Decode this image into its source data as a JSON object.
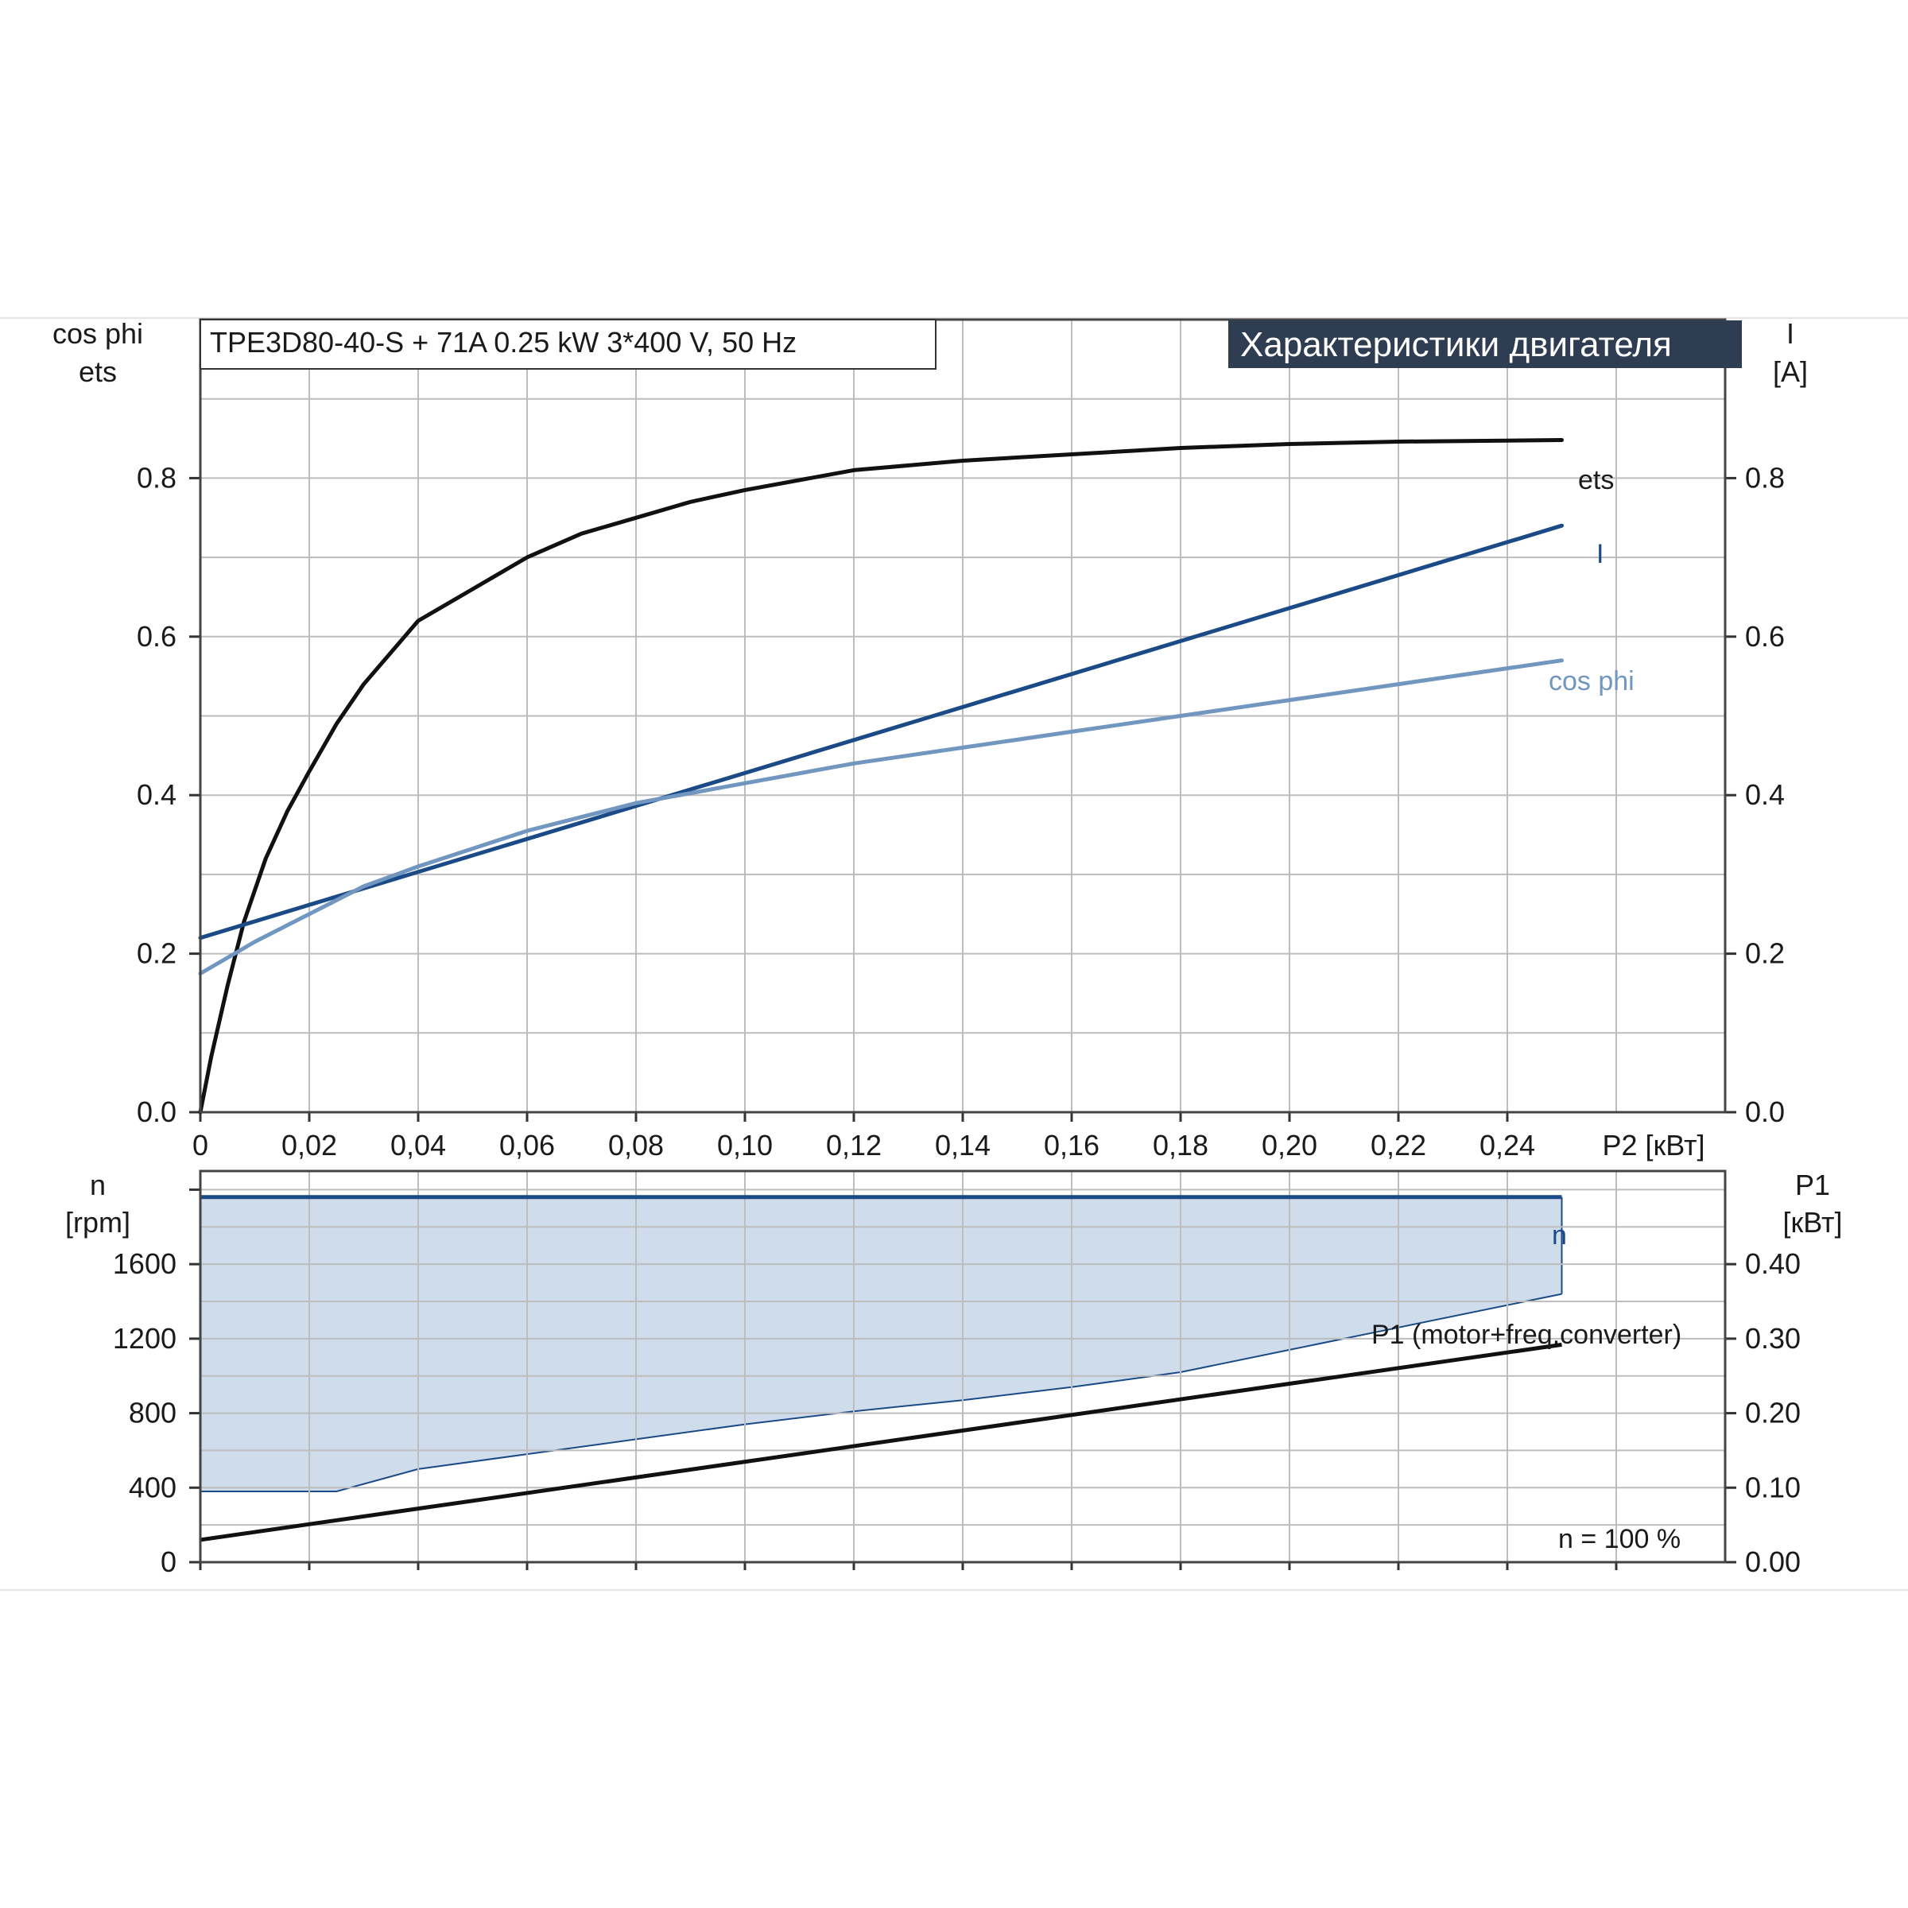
{
  "model_info": "TPE3D80-40-S + 71A   0.25 kW   3*400 V, 50 Hz",
  "banner": "Характеристики двигателя",
  "colors": {
    "ets": "#111111",
    "I": "#1b4b86",
    "cos_phi": "#7196c0",
    "n": "#1b4b86",
    "P1": "#111111",
    "fill": "#cfdceb",
    "grid": "#bdbdbd",
    "banner_bg": "#2e3d52"
  },
  "chart_data": [
    {
      "type": "line",
      "xlabel": "P2 [кВт]",
      "x_tick_labels": [
        "0",
        "0,02",
        "0,04",
        "0,06",
        "0,08",
        "0,10",
        "0,12",
        "0,14",
        "0,16",
        "0,18",
        "0,20",
        "0,22",
        "0,24"
      ],
      "xlim": [
        0,
        0.28
      ],
      "y_left_label": [
        "cos phi",
        "ets"
      ],
      "y_right_label": [
        "I",
        "[A]"
      ],
      "ylim": [
        0,
        1.0
      ],
      "y_tick_labels": [
        "0.0",
        "0.2",
        "0.4",
        "0.6",
        "0.8"
      ],
      "y_right_tick_labels": [
        "0.0",
        "0.2",
        "0.4",
        "0.6",
        "0.8"
      ],
      "grid": true,
      "series": [
        {
          "name": "ets",
          "x": [
            0,
            0.002,
            0.005,
            0.008,
            0.012,
            0.016,
            0.02,
            0.025,
            0.03,
            0.04,
            0.05,
            0.06,
            0.07,
            0.08,
            0.09,
            0.1,
            0.12,
            0.14,
            0.16,
            0.18,
            0.2,
            0.22,
            0.25
          ],
          "y": [
            0.0,
            0.07,
            0.16,
            0.24,
            0.32,
            0.38,
            0.43,
            0.49,
            0.54,
            0.62,
            0.66,
            0.7,
            0.73,
            0.75,
            0.77,
            0.785,
            0.81,
            0.822,
            0.83,
            0.838,
            0.843,
            0.846,
            0.848
          ]
        },
        {
          "name": "I",
          "x": [
            0,
            0.25
          ],
          "y": [
            0.22,
            0.74
          ]
        },
        {
          "name": "cos phi",
          "x": [
            0,
            0.005,
            0.01,
            0.02,
            0.03,
            0.04,
            0.06,
            0.08,
            0.1,
            0.12,
            0.14,
            0.16,
            0.18,
            0.2,
            0.22,
            0.25
          ],
          "y": [
            0.175,
            0.195,
            0.215,
            0.25,
            0.285,
            0.31,
            0.355,
            0.39,
            0.415,
            0.44,
            0.46,
            0.48,
            0.5,
            0.52,
            0.54,
            0.57
          ]
        }
      ]
    },
    {
      "type": "line",
      "y_left_label": [
        "n",
        "[rpm]"
      ],
      "y_right_label": [
        "P1",
        "[кВт]"
      ],
      "ylim_left": [
        0,
        2100
      ],
      "ylim_right": [
        0,
        0.525
      ],
      "xlim": [
        0,
        0.28
      ],
      "y_tick_labels": [
        "0",
        "400",
        "800",
        "1200",
        "1600"
      ],
      "y_right_tick_labels": [
        "0.00",
        "0.10",
        "0.20",
        "0.30",
        "0.40"
      ],
      "grid": true,
      "annotation": "n = 100 %",
      "series": [
        {
          "name": "n",
          "x": [
            0,
            0.25
          ],
          "y": [
            1960,
            1960
          ]
        },
        {
          "name": "P1 (motor+freq.converter)",
          "x": [
            0,
            0.25
          ],
          "y": [
            0.03,
            0.292
          ]
        }
      ],
      "operating_area": {
        "upper_rpm": 1960,
        "lower_x": [
          0,
          0.025,
          0.04,
          0.06,
          0.08,
          0.1,
          0.12,
          0.14,
          0.16,
          0.18,
          0.2,
          0.22,
          0.25
        ],
        "lower_rpm": [
          380,
          380,
          500,
          580,
          660,
          740,
          810,
          870,
          940,
          1020,
          1140,
          1260,
          1440
        ]
      }
    }
  ]
}
